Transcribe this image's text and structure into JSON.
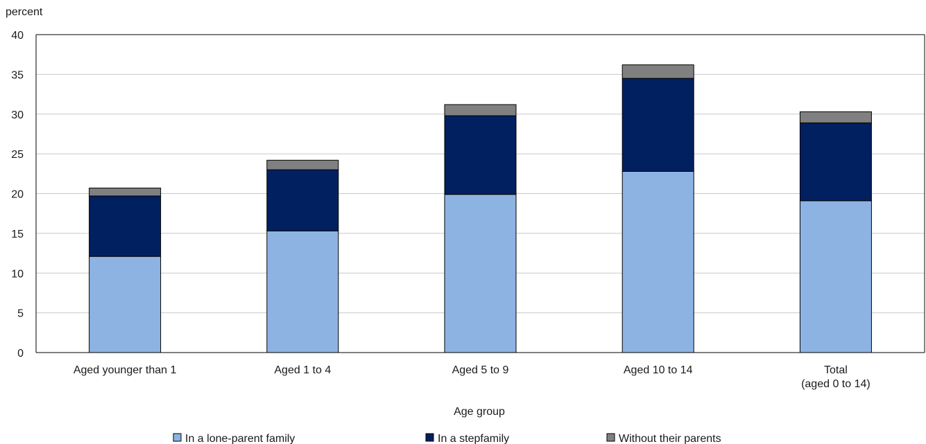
{
  "chart_data": {
    "type": "bar",
    "stacked": true,
    "ylabel": "percent",
    "xlabel": "Age group",
    "ylim": [
      0,
      40
    ],
    "yticks": [
      0,
      5,
      10,
      15,
      20,
      25,
      30,
      35,
      40
    ],
    "grid": true,
    "legend_position": "bottom",
    "categories": [
      [
        "Aged younger than 1"
      ],
      [
        "Aged 1 to 4"
      ],
      [
        "Aged 5 to 9"
      ],
      [
        "Aged 10 to 14"
      ],
      [
        "Total",
        "(aged 0 to 14)"
      ]
    ],
    "series": [
      {
        "name": "In a lone-parent family",
        "color": "#8db3e2",
        "values": [
          12.1,
          15.3,
          19.9,
          22.8,
          19.1
        ]
      },
      {
        "name": "In a stepfamily",
        "color": "#002060",
        "values": [
          7.6,
          7.7,
          9.9,
          11.7,
          9.8
        ]
      },
      {
        "name": "Without their parents",
        "color": "#808080",
        "values": [
          1.0,
          1.2,
          1.4,
          1.7,
          1.4
        ]
      }
    ]
  }
}
